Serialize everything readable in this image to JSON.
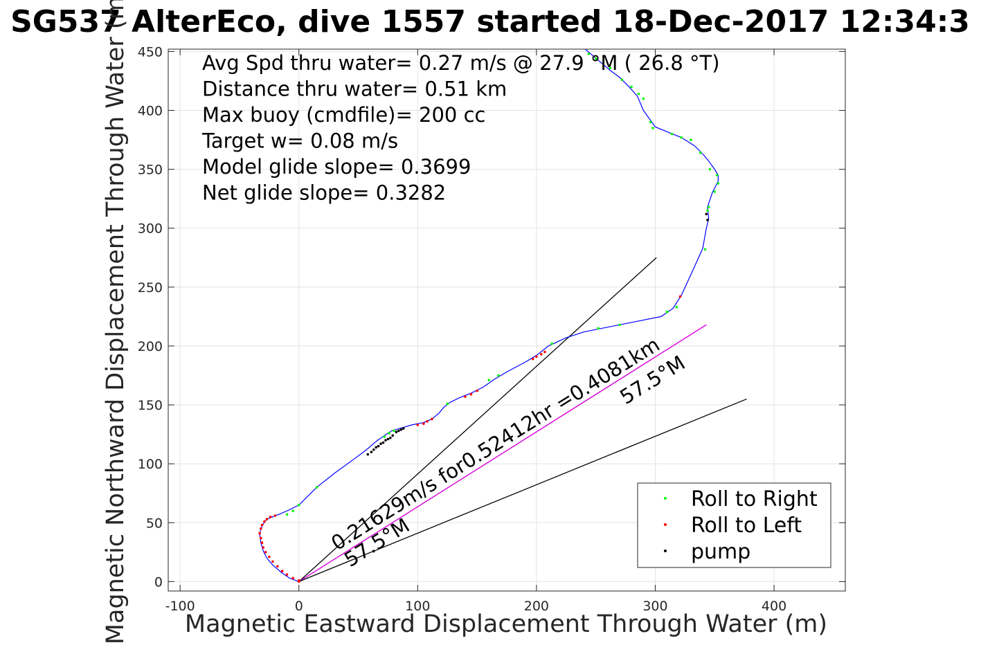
{
  "chart_data": {
    "type": "line",
    "title": "SG537 AlterEco, dive 1557 started 18-Dec-2017 12:34:3",
    "xlabel": "Magnetic Eastward Displacement Through Water (m)",
    "ylabel": "Magnetic Northward Displacement Through Water (m)",
    "xlim": [
      -110,
      460
    ],
    "ylim": [
      -8,
      452
    ],
    "xticks": [
      -100,
      0,
      100,
      200,
      300,
      400
    ],
    "xtick_labels": [
      "-100",
      "0",
      "100",
      "200",
      "300",
      "400"
    ],
    "yticks": [
      0,
      50,
      100,
      150,
      200,
      250,
      300,
      350,
      400,
      450
    ],
    "ytick_labels": [
      "0",
      "50",
      "100",
      "150",
      "200",
      "250",
      "300",
      "350",
      "400",
      "450"
    ],
    "grid": true,
    "legend_placement": "bottom-right",
    "annotations": [
      "Avg Spd thru water=  0.27 m/s @  27.9 °M ( 26.8 °T)",
      "Distance thru water=  0.51 km",
      "Max buoy (cmdfile)= 200 cc",
      "Target w= 0.08 m/s",
      "Model glide slope= 0.3699",
      "Net glide slope= 0.3282"
    ],
    "series": [
      {
        "name": "",
        "color": "#0000ff",
        "x": [
          0,
          -8,
          -15,
          -22,
          -27,
          -30,
          -32,
          -33,
          -32,
          -30,
          -27,
          -22,
          -17,
          -10,
          0,
          15,
          30,
          45,
          57,
          65,
          72,
          78,
          85,
          95,
          105,
          112,
          118,
          122,
          127,
          135,
          145,
          155,
          165,
          175,
          190,
          200,
          210,
          225,
          240,
          255,
          270,
          285,
          305,
          315,
          322,
          332,
          340,
          343,
          345,
          344,
          348,
          353,
          353,
          350,
          345,
          340,
          333,
          322,
          312,
          300,
          290,
          285,
          278,
          270,
          262,
          255,
          248,
          241
        ],
        "y": [
          0,
          3,
          8,
          14,
          20,
          26,
          33,
          40,
          45,
          49,
          53,
          55,
          57,
          60,
          65,
          80,
          92,
          103,
          112,
          119,
          124,
          128,
          130,
          133,
          135,
          138,
          143,
          148,
          152,
          156,
          160,
          165,
          172,
          178,
          186,
          192,
          200,
          207,
          212,
          215,
          218,
          221,
          225,
          232,
          243,
          265,
          283,
          300,
          308,
          318,
          330,
          340,
          345,
          350,
          357,
          363,
          370,
          377,
          381,
          386,
          400,
          412,
          420,
          428,
          434,
          440,
          446,
          452
        ]
      }
    ],
    "markers": [
      {
        "name": "Roll to Right",
        "color": "#00ff00",
        "x": [
          -10,
          -5,
          0,
          15,
          72,
          76,
          80,
          125,
          160,
          168,
          213,
          252,
          270,
          310,
          318,
          342,
          345,
          344,
          350,
          353,
          352,
          346,
          338,
          330,
          322,
          314,
          298,
          296,
          290,
          286,
          280,
          272,
          262,
          250,
          244
        ],
        "y": [
          57,
          60,
          65,
          80,
          123,
          126,
          128,
          151,
          171,
          175,
          202,
          215,
          218,
          229,
          233,
          282,
          318,
          315,
          331,
          338,
          345,
          350,
          364,
          375,
          377,
          380,
          385,
          390,
          410,
          414,
          420,
          426,
          436,
          444,
          448
        ]
      },
      {
        "name": "Roll to Left",
        "color": "#ff0000",
        "x": [
          0,
          -5,
          -10,
          -14,
          -18,
          -22,
          -25,
          -28,
          -30,
          -31,
          -32,
          -33,
          -32,
          -31,
          -29,
          -27,
          -24,
          -20,
          100,
          105,
          108,
          112,
          140,
          145,
          150,
          197,
          200,
          204,
          207,
          321,
          0
        ],
        "y": [
          0,
          3,
          6,
          9,
          13,
          17,
          21,
          25,
          29,
          33,
          37,
          41,
          45,
          48,
          51,
          53,
          55,
          56,
          133,
          134,
          136,
          138,
          157,
          159,
          162,
          189,
          191,
          193,
          195,
          242,
          1
        ]
      },
      {
        "name": "pump",
        "color": "#000000",
        "x": [
          58,
          61,
          63,
          65,
          67,
          69,
          71,
          73,
          75,
          77,
          79,
          82,
          84,
          86,
          88,
          343,
          344
        ],
        "y": [
          108,
          110,
          112,
          114,
          115,
          117,
          118,
          120,
          121,
          122,
          124,
          127,
          128,
          129,
          130,
          312,
          307
        ]
      }
    ],
    "reference_lines": [
      {
        "color": "#000000",
        "x": [
          0,
          301
        ],
        "y": [
          0,
          275
        ]
      },
      {
        "color": "#000000",
        "x": [
          0,
          343
        ],
        "y": [
          0,
          218
        ]
      },
      {
        "color": "#ff00ff",
        "x": [
          0,
          343
        ],
        "y": [
          0,
          218
        ]
      },
      {
        "color": "#000000",
        "x": [
          0,
          377
        ],
        "y": [
          0,
          155
        ]
      }
    ],
    "line_labels": [
      {
        "text": "0.21629m/s for0.52412hr =0.4081km",
        "x": 32,
        "y": 26,
        "angle_deg": -32
      },
      {
        "text": "57.5°M",
        "x": 43,
        "y": 12,
        "angle_deg": -32
      },
      {
        "text": "57.5°M",
        "x": 275,
        "y": 150,
        "angle_deg": -32
      }
    ],
    "legend": [
      {
        "label": "Roll to Right",
        "color": "#00ff00"
      },
      {
        "label": "Roll to Left",
        "color": "#ff0000"
      },
      {
        "label": "pump",
        "color": "#000000"
      }
    ]
  }
}
